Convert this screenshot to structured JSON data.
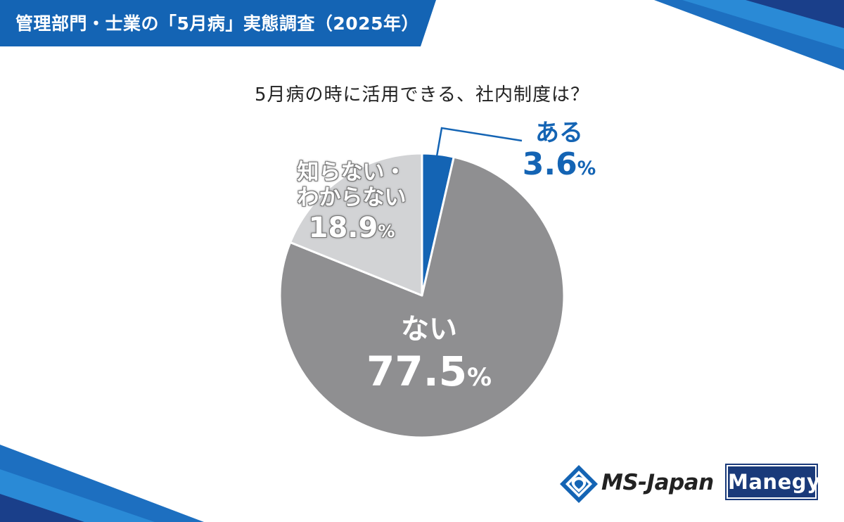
{
  "header": {
    "title": "管理部門・士業の「5月病」実態調査（2025年）"
  },
  "colors": {
    "banner": "#1464b4",
    "accent": "#1464b4",
    "slice_aru": "#1464b4",
    "slice_nai": "#8f8f91",
    "slice_shiranai": "#d2d3d5"
  },
  "chart_data": {
    "type": "pie",
    "title": "5月病の時に活用できる、社内制度は？",
    "slices": [
      {
        "label": "ある",
        "value": 3.6,
        "value_text": "3.6",
        "unit": "%",
        "color": "#1464b4"
      },
      {
        "label": "ない",
        "value": 77.5,
        "value_text": "77.5",
        "unit": "%",
        "color": "#8f8f91"
      },
      {
        "label_line1": "知らない・",
        "label_line2": "わからない",
        "value": 18.9,
        "value_text": "18.9",
        "unit": "%",
        "color": "#d2d3d5"
      }
    ]
  },
  "logos": {
    "ms_japan": "MS-Japan",
    "manegy": "Manegy"
  }
}
